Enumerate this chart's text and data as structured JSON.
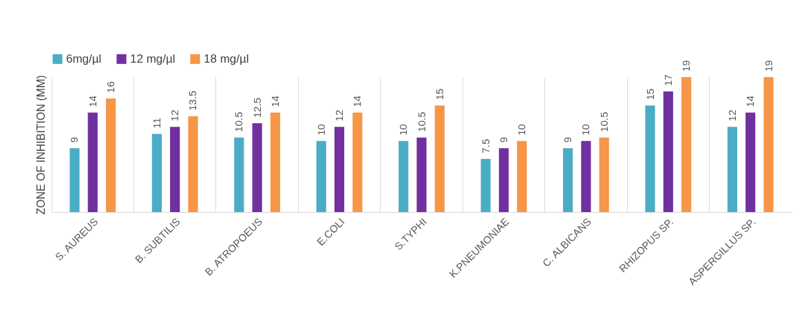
{
  "chart_data": {
    "type": "bar",
    "ylabel": "ZONE OF INHIBITION (MM)",
    "categories": [
      "S. AUREUS",
      "B. SUBTILIS",
      "B. ATROPOEUS",
      "E.COLI",
      "S.TYPHI",
      "K.PNEUMONIAE",
      "C. ALBICANS",
      "RHIZOPUS SP.",
      "ASPERGILLUS SP."
    ],
    "series": [
      {
        "name": "6mg/µl",
        "color": "#4bacc6",
        "values": [
          9,
          11,
          10.5,
          10,
          10,
          7.5,
          9,
          15,
          12
        ]
      },
      {
        "name": "12 mg/µl",
        "color": "#7030a0",
        "values": [
          14,
          12,
          12.5,
          12,
          10.5,
          9,
          10,
          17,
          14
        ]
      },
      {
        "name": "18 mg/µl",
        "color": "#f79646",
        "values": [
          16,
          13.5,
          14,
          14,
          15,
          10,
          10.5,
          19,
          19
        ]
      }
    ],
    "data_labels": true,
    "grid": "x",
    "legend": "top",
    "tick_labels": "x"
  }
}
